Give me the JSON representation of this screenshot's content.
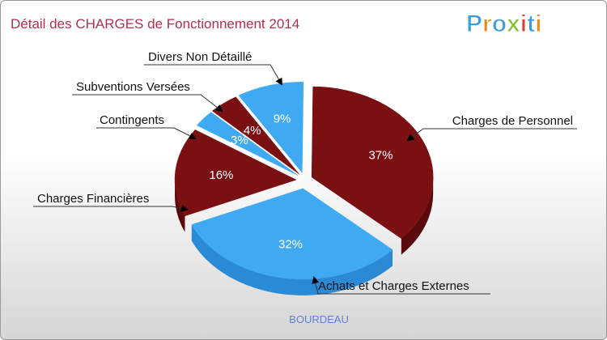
{
  "title": "Détail des CHARGES de Fonctionnement 2014",
  "brand": "Proxiti",
  "footer": "BOURDEAU",
  "colors": {
    "title": "#b03050",
    "footer": "#5f7fd6",
    "dark_top": "#7a1012",
    "dark_side": "#5a0a0c",
    "light_top": "#3fa9f1",
    "light_side": "#2b8ad6",
    "leader": "#333333",
    "brand_letters": [
      "#3a9ee0",
      "#e88a1a",
      "#3a9ee0",
      "#7ec12a",
      "#e83a2a",
      "#3a9ee0",
      "#e88a1a"
    ]
  },
  "chart_data": {
    "type": "pie",
    "style": "exploded-3d",
    "title": "Détail des CHARGES de Fonctionnement 2014",
    "series": [
      {
        "name": "Charges de Personnel",
        "value": 37,
        "label": "37%",
        "tone": "dark"
      },
      {
        "name": "Achats et Charges Externes",
        "value": 32,
        "label": "32%",
        "tone": "light"
      },
      {
        "name": "Charges Financières",
        "value": 16,
        "label": "16%",
        "tone": "dark"
      },
      {
        "name": "Contingents",
        "value": 3,
        "label": "3%",
        "tone": "light"
      },
      {
        "name": "Subventions Versées",
        "value": 4,
        "label": "4%",
        "tone": "dark"
      },
      {
        "name": "Divers Non Détaillé",
        "value": 9,
        "label": "9%",
        "tone": "light"
      }
    ]
  }
}
